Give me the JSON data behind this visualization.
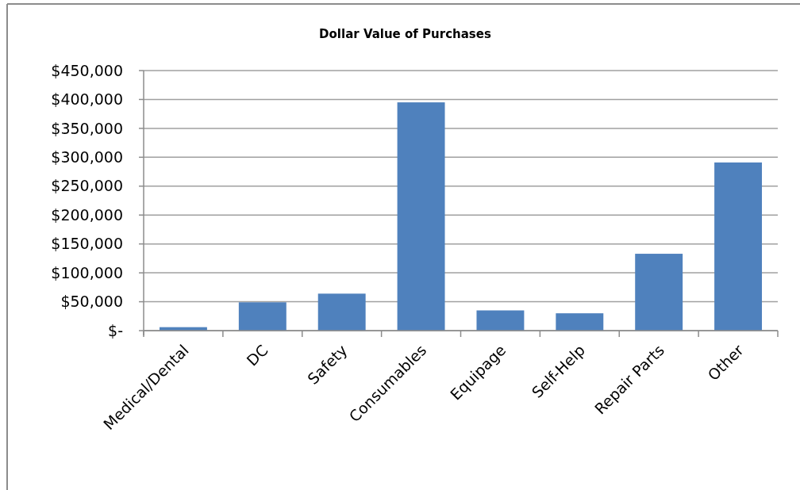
{
  "chart_data": {
    "type": "bar",
    "title": "Dollar Value of Purchases",
    "categories": [
      "Medical/Dental",
      "DC",
      "Safety",
      "Consumables",
      "Equipage",
      "Self-Help",
      "Repair Parts",
      "Other"
    ],
    "values": [
      6000,
      49000,
      64000,
      395000,
      35000,
      30000,
      133000,
      291000
    ],
    "color": "#4f81bd",
    "ylim": [
      0,
      450000
    ],
    "yticks": [
      {
        "value": 0,
        "label": "$-"
      },
      {
        "value": 50000,
        "label": "$50,000"
      },
      {
        "value": 100000,
        "label": "$100,000"
      },
      {
        "value": 150000,
        "label": "$150,000"
      },
      {
        "value": 200000,
        "label": "$200,000"
      },
      {
        "value": 250000,
        "label": "$250,000"
      },
      {
        "value": 300000,
        "label": "$300,000"
      },
      {
        "value": 350000,
        "label": "$350,000"
      },
      {
        "value": 400000,
        "label": "$400,000"
      },
      {
        "value": 450000,
        "label": "$450,000"
      }
    ],
    "grid": "y"
  }
}
